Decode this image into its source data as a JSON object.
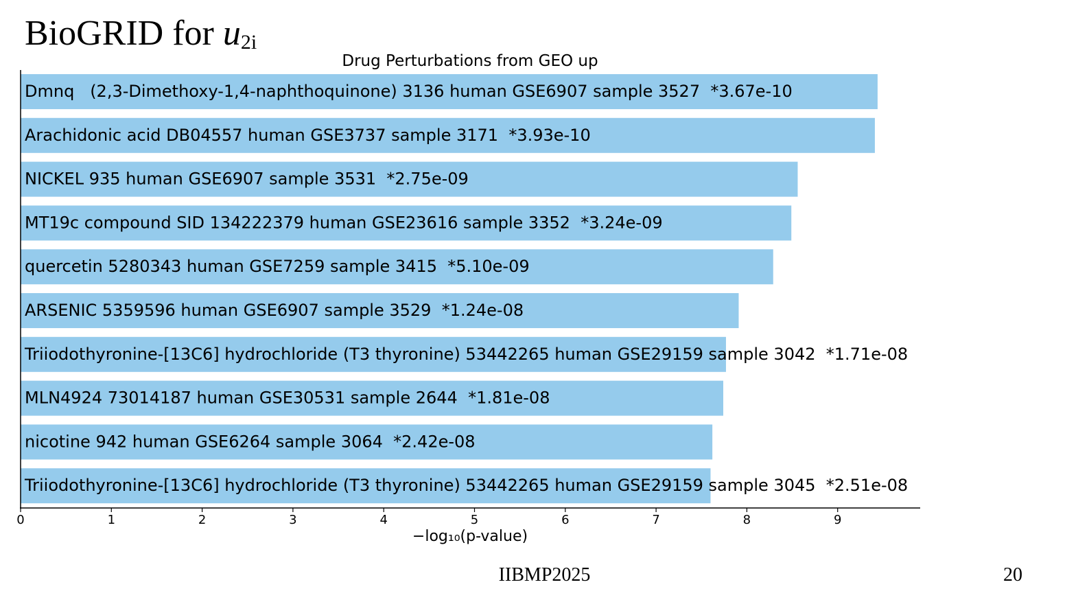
{
  "slide": {
    "title_prefix": "BioGRID for ",
    "title_var": "u",
    "title_sub": "2i",
    "footer": "IIBMP2025",
    "page_number": "20"
  },
  "chart_data": {
    "type": "bar",
    "orientation": "horizontal",
    "title": "Drug Perturbations from GEO up",
    "xlabel": "−log₁₀(p-value)",
    "ylabel": "",
    "xlim": [
      0,
      9.9
    ],
    "xticks": [
      0,
      1,
      2,
      3,
      4,
      5,
      6,
      7,
      8,
      9
    ],
    "bar_color": "#95cbec",
    "categories": [
      "Dmnq   (2,3-Dimethoxy-1,4-naphthoquinone) 3136 human GSE6907 sample 3527  *3.67e-10",
      "Arachidonic acid DB04557 human GSE3737 sample 3171  *3.93e-10",
      "NICKEL 935 human GSE6907 sample 3531  *2.75e-09",
      "MT19c compound SID 134222379 human GSE23616 sample 3352  *3.24e-09",
      "quercetin 5280343 human GSE7259 sample 3415  *5.10e-09",
      "ARSENIC 5359596 human GSE6907 sample 3529  *1.24e-08",
      "Triiodothyronine-[13C6] hydrochloride (T3 thyronine) 53442265 human GSE29159 sample 3042  *1.71e-08",
      "MLN4924 73014187 human GSE30531 sample 2644  *1.81e-08",
      "nicotine 942 human GSE6264 sample 3064  *2.42e-08",
      "Triiodothyronine-[13C6] hydrochloride (T3 thyronine) 53442265 human GSE29159 sample 3045  *2.51e-08"
    ],
    "values": [
      9.44,
      9.41,
      8.56,
      8.49,
      8.29,
      7.91,
      7.77,
      7.74,
      7.62,
      7.6
    ]
  }
}
